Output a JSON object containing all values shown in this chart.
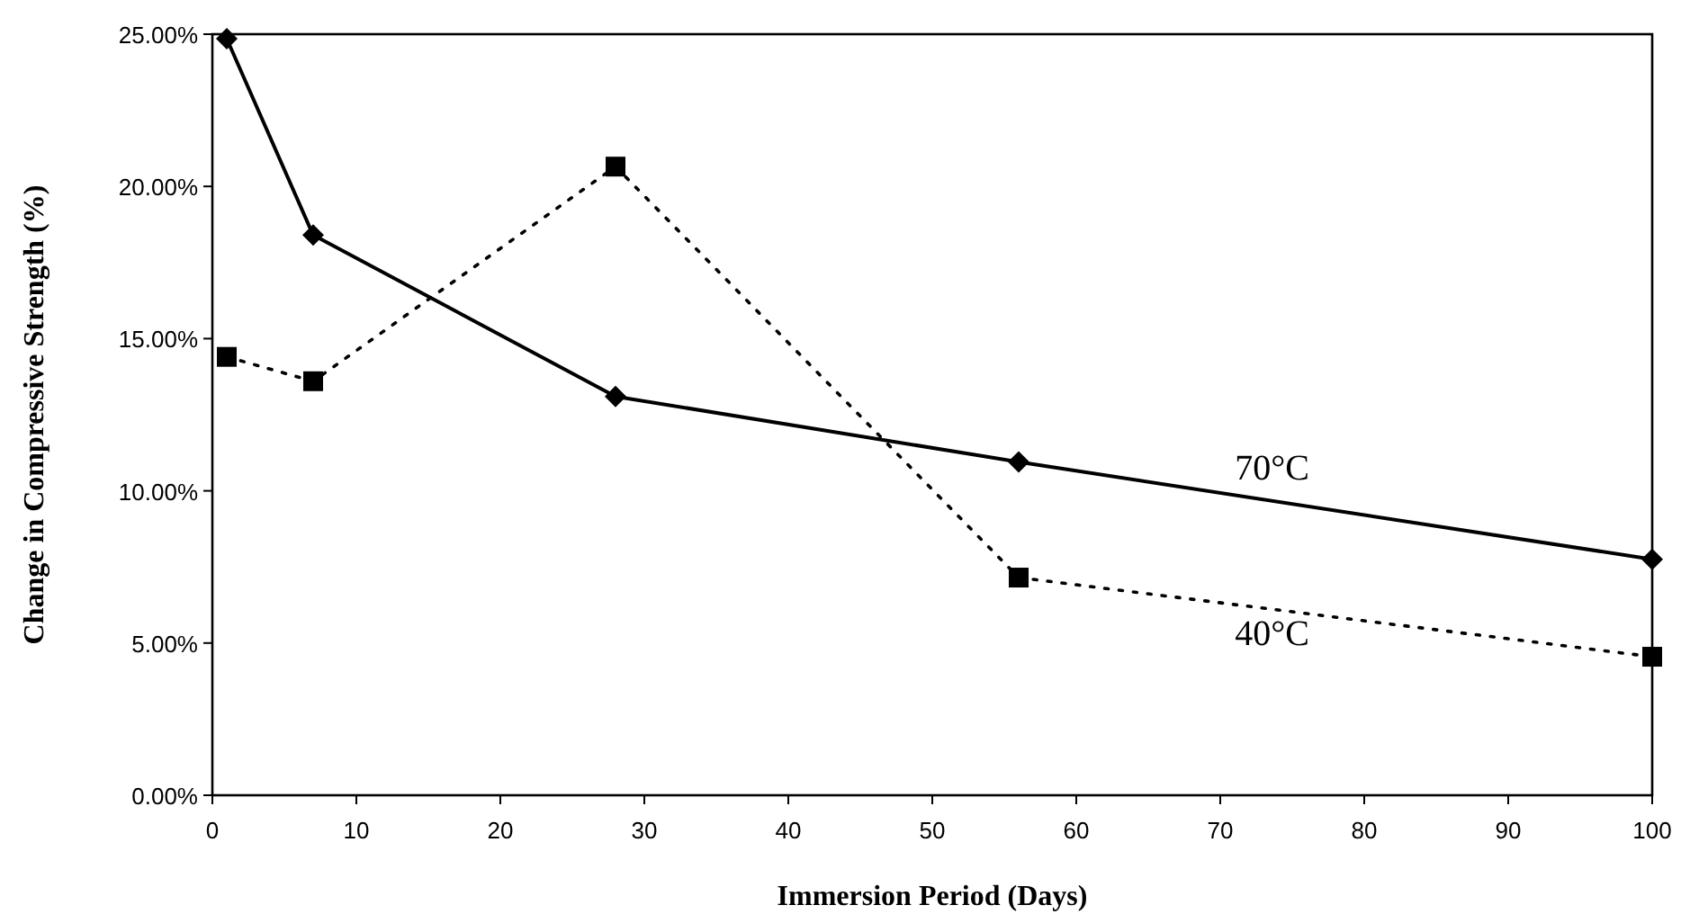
{
  "chart_data": {
    "type": "line",
    "xlabel": "Immersion Period (Days)",
    "ylabel": "Change in Compressive Strength (%)",
    "xlim": [
      0,
      100
    ],
    "xticks": [
      0,
      10,
      20,
      30,
      40,
      50,
      60,
      70,
      80,
      90,
      100
    ],
    "ylim": [
      0,
      25
    ],
    "yticks": [
      {
        "value": 0,
        "label": "0.00%"
      },
      {
        "value": 5,
        "label": "5.00%"
      },
      {
        "value": 10,
        "label": "10.00%"
      },
      {
        "value": 15,
        "label": "15.00%"
      },
      {
        "value": 20,
        "label": "20.00%"
      },
      {
        "value": 25,
        "label": "25.00%"
      }
    ],
    "grid": false,
    "series": [
      {
        "name": "70°C",
        "color": "#000000",
        "marker": "diamond",
        "line_style": "solid",
        "x": [
          1,
          7,
          28,
          56,
          100
        ],
        "values": [
          24.85,
          18.4,
          13.1,
          10.95,
          7.75
        ]
      },
      {
        "name": "40°C",
        "color": "#000000",
        "marker": "square",
        "line_style": "dotted",
        "x": [
          1,
          7,
          28,
          56,
          100
        ],
        "values": [
          14.4,
          13.6,
          20.65,
          7.15,
          4.55
        ]
      }
    ]
  }
}
